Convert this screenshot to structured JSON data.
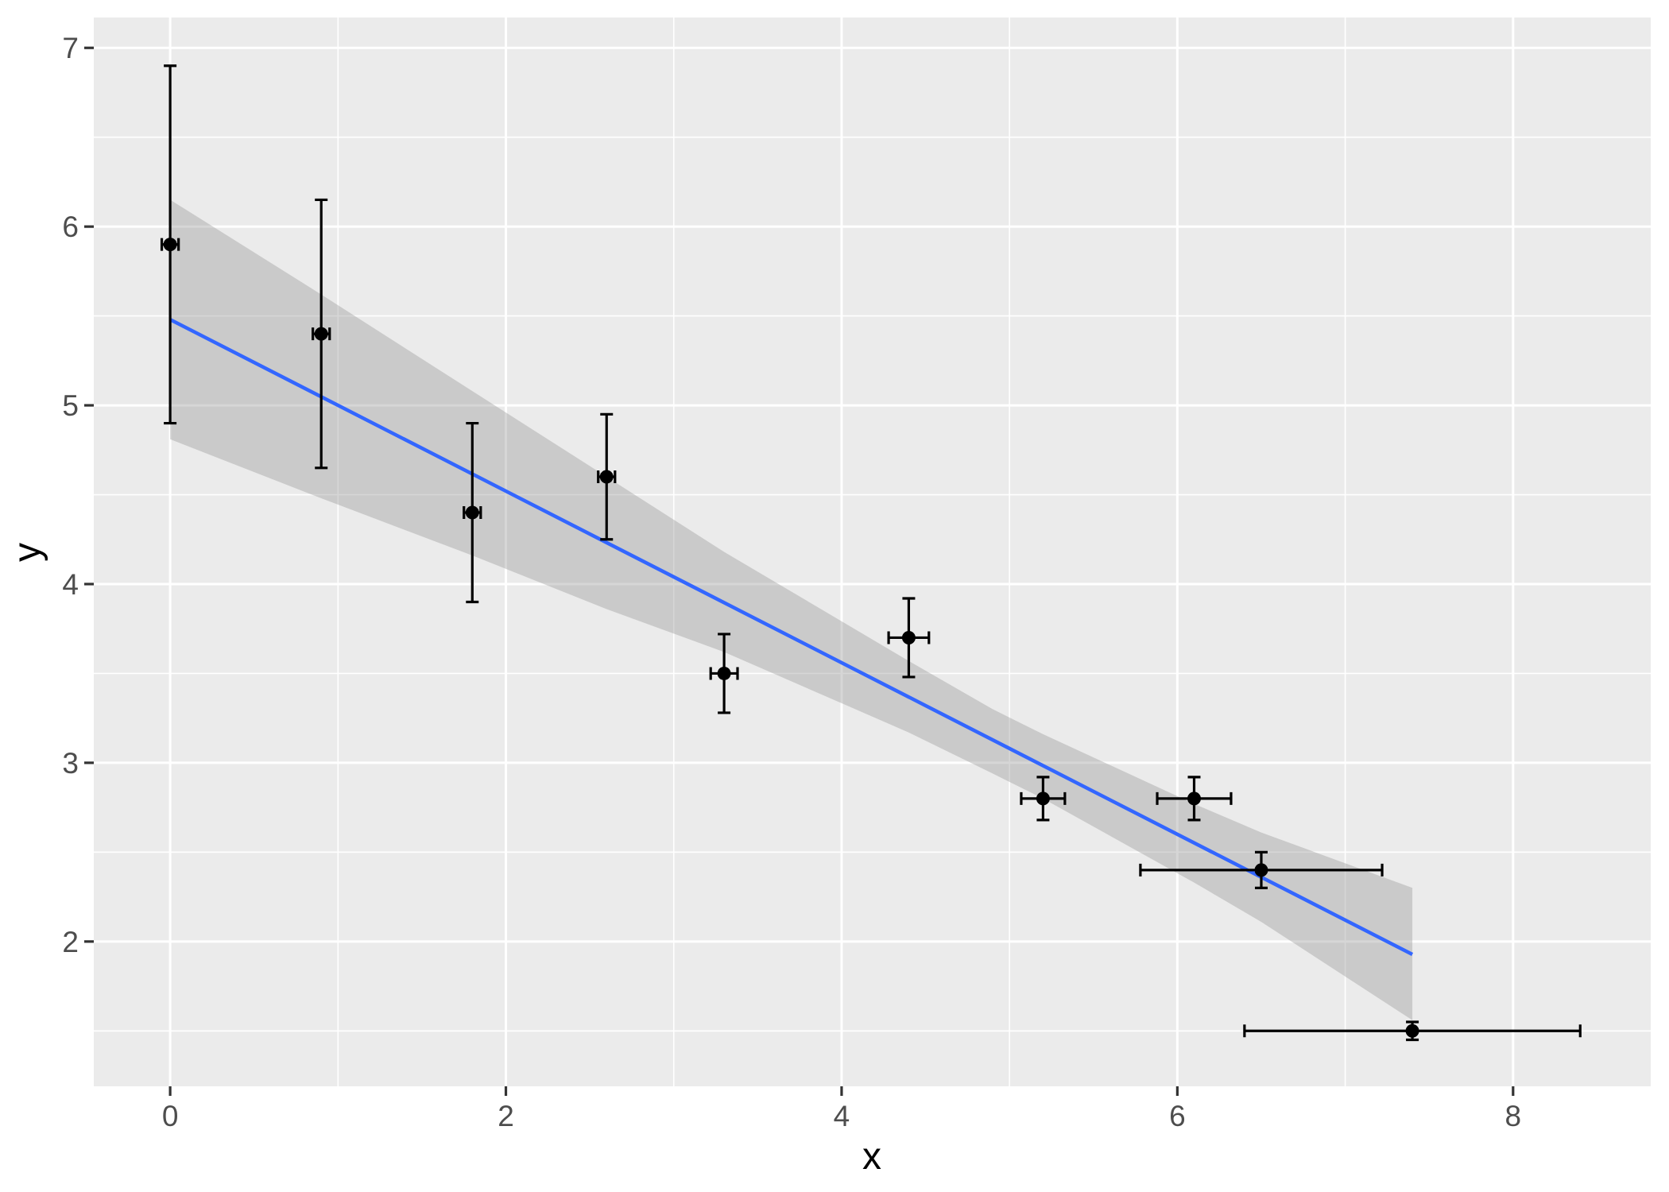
{
  "chart_data": {
    "type": "scatter",
    "title": "",
    "xlabel": "x",
    "ylabel": "y",
    "xlim": [
      -0.455,
      8.82
    ],
    "ylim": [
      1.19,
      7.17
    ],
    "x_major_ticks": [
      0,
      2,
      4,
      6,
      8
    ],
    "x_minor_gridlines": [
      1,
      3,
      5,
      7
    ],
    "y_major_ticks": [
      2,
      3,
      4,
      5,
      6,
      7
    ],
    "y_minor_gridlines": [
      1.5,
      2.5,
      3.5,
      4.5,
      5.5,
      6.5
    ],
    "legend_position": "none",
    "grid": "white major and minor gridlines on grey panel",
    "points": [
      {
        "x": 0.0,
        "y": 5.9,
        "xerr": 0.05,
        "yerr": 1.0
      },
      {
        "x": 0.9,
        "y": 5.4,
        "xerr": 0.05,
        "yerr": 0.75
      },
      {
        "x": 1.8,
        "y": 4.4,
        "xerr": 0.05,
        "yerr": 0.5
      },
      {
        "x": 2.6,
        "y": 4.6,
        "xerr": 0.05,
        "yerr": 0.35
      },
      {
        "x": 3.3,
        "y": 3.5,
        "xerr": 0.08,
        "yerr": 0.22
      },
      {
        "x": 4.4,
        "y": 3.7,
        "xerr": 0.12,
        "yerr": 0.22
      },
      {
        "x": 5.2,
        "y": 2.8,
        "xerr": 0.13,
        "yerr": 0.12
      },
      {
        "x": 6.1,
        "y": 2.8,
        "xerr": 0.22,
        "yerr": 0.12
      },
      {
        "x": 6.5,
        "y": 2.4,
        "xerr": 0.72,
        "yerr": 0.1
      },
      {
        "x": 7.4,
        "y": 1.5,
        "xerr": 1.0,
        "yerr": 0.05
      }
    ],
    "regression_line": {
      "type": "linear",
      "slope": -0.48,
      "intercept": 5.48,
      "x_start": 0.0,
      "x_end": 7.4
    },
    "confidence_ribbon": [
      {
        "x": 0.0,
        "lower": 4.81,
        "upper": 6.15
      },
      {
        "x": 0.9,
        "lower": 4.48,
        "upper": 5.62
      },
      {
        "x": 1.8,
        "lower": 4.16,
        "upper": 5.08
      },
      {
        "x": 2.6,
        "lower": 3.86,
        "upper": 4.6
      },
      {
        "x": 3.3,
        "lower": 3.62,
        "upper": 4.18
      },
      {
        "x": 4.4,
        "lower": 3.17,
        "upper": 3.57
      },
      {
        "x": 4.9,
        "lower": 2.94,
        "upper": 3.3
      },
      {
        "x": 5.2,
        "lower": 2.8,
        "upper": 3.16
      },
      {
        "x": 6.1,
        "lower": 2.33,
        "upper": 2.77
      },
      {
        "x": 6.5,
        "lower": 2.11,
        "upper": 2.61
      },
      {
        "x": 7.4,
        "lower": 1.56,
        "upper": 2.3
      }
    ],
    "colors": {
      "panel_background": "#EBEBEB",
      "gridline": "#FFFFFF",
      "ribbon_base": "#999999",
      "ribbon_opacity": 0.4,
      "smooth_line": "#3366FF",
      "point": "#000000",
      "error_bar": "#000000",
      "tick_mark": "#333333",
      "tick_label": "#4D4D4D",
      "axis_title": "#000000",
      "figure_background": "#FFFFFF"
    }
  }
}
